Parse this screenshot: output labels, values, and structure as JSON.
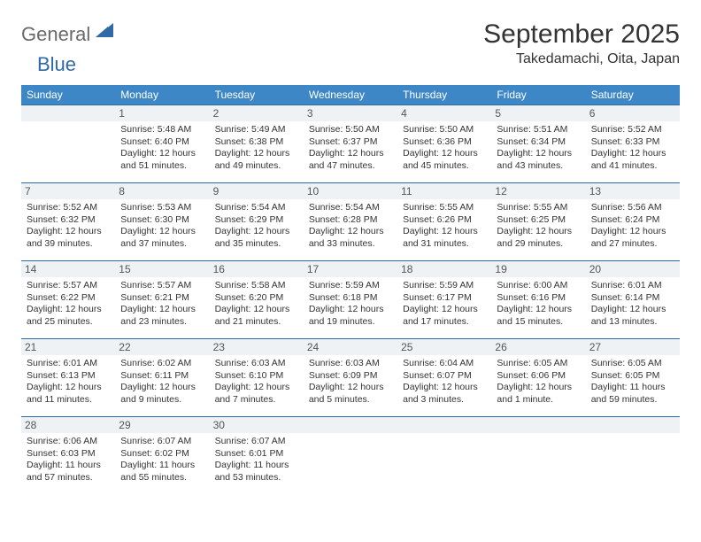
{
  "brand": {
    "part1": "General",
    "part2": "Blue"
  },
  "title": "September 2025",
  "location": "Takedamachi, Oita, Japan",
  "colors": {
    "header_bg": "#3d87c7",
    "header_text": "#ffffff",
    "rule": "#2f6aa6",
    "daynum_bg": "#eef2f5",
    "brand_gray": "#6a6a6a",
    "brand_blue": "#2f6aa6",
    "page_bg": "#ffffff"
  },
  "typography": {
    "title_fontsize": 30,
    "location_fontsize": 16,
    "header_fontsize": 12,
    "body_fontsize": 10.5
  },
  "weekdays": [
    "Sunday",
    "Monday",
    "Tuesday",
    "Wednesday",
    "Thursday",
    "Friday",
    "Saturday"
  ],
  "weeks": [
    [
      {
        "num": "",
        "sunrise": "",
        "sunset": "",
        "daylight": ""
      },
      {
        "num": "1",
        "sunrise": "Sunrise: 5:48 AM",
        "sunset": "Sunset: 6:40 PM",
        "daylight": "Daylight: 12 hours and 51 minutes."
      },
      {
        "num": "2",
        "sunrise": "Sunrise: 5:49 AM",
        "sunset": "Sunset: 6:38 PM",
        "daylight": "Daylight: 12 hours and 49 minutes."
      },
      {
        "num": "3",
        "sunrise": "Sunrise: 5:50 AM",
        "sunset": "Sunset: 6:37 PM",
        "daylight": "Daylight: 12 hours and 47 minutes."
      },
      {
        "num": "4",
        "sunrise": "Sunrise: 5:50 AM",
        "sunset": "Sunset: 6:36 PM",
        "daylight": "Daylight: 12 hours and 45 minutes."
      },
      {
        "num": "5",
        "sunrise": "Sunrise: 5:51 AM",
        "sunset": "Sunset: 6:34 PM",
        "daylight": "Daylight: 12 hours and 43 minutes."
      },
      {
        "num": "6",
        "sunrise": "Sunrise: 5:52 AM",
        "sunset": "Sunset: 6:33 PM",
        "daylight": "Daylight: 12 hours and 41 minutes."
      }
    ],
    [
      {
        "num": "7",
        "sunrise": "Sunrise: 5:52 AM",
        "sunset": "Sunset: 6:32 PM",
        "daylight": "Daylight: 12 hours and 39 minutes."
      },
      {
        "num": "8",
        "sunrise": "Sunrise: 5:53 AM",
        "sunset": "Sunset: 6:30 PM",
        "daylight": "Daylight: 12 hours and 37 minutes."
      },
      {
        "num": "9",
        "sunrise": "Sunrise: 5:54 AM",
        "sunset": "Sunset: 6:29 PM",
        "daylight": "Daylight: 12 hours and 35 minutes."
      },
      {
        "num": "10",
        "sunrise": "Sunrise: 5:54 AM",
        "sunset": "Sunset: 6:28 PM",
        "daylight": "Daylight: 12 hours and 33 minutes."
      },
      {
        "num": "11",
        "sunrise": "Sunrise: 5:55 AM",
        "sunset": "Sunset: 6:26 PM",
        "daylight": "Daylight: 12 hours and 31 minutes."
      },
      {
        "num": "12",
        "sunrise": "Sunrise: 5:55 AM",
        "sunset": "Sunset: 6:25 PM",
        "daylight": "Daylight: 12 hours and 29 minutes."
      },
      {
        "num": "13",
        "sunrise": "Sunrise: 5:56 AM",
        "sunset": "Sunset: 6:24 PM",
        "daylight": "Daylight: 12 hours and 27 minutes."
      }
    ],
    [
      {
        "num": "14",
        "sunrise": "Sunrise: 5:57 AM",
        "sunset": "Sunset: 6:22 PM",
        "daylight": "Daylight: 12 hours and 25 minutes."
      },
      {
        "num": "15",
        "sunrise": "Sunrise: 5:57 AM",
        "sunset": "Sunset: 6:21 PM",
        "daylight": "Daylight: 12 hours and 23 minutes."
      },
      {
        "num": "16",
        "sunrise": "Sunrise: 5:58 AM",
        "sunset": "Sunset: 6:20 PM",
        "daylight": "Daylight: 12 hours and 21 minutes."
      },
      {
        "num": "17",
        "sunrise": "Sunrise: 5:59 AM",
        "sunset": "Sunset: 6:18 PM",
        "daylight": "Daylight: 12 hours and 19 minutes."
      },
      {
        "num": "18",
        "sunrise": "Sunrise: 5:59 AM",
        "sunset": "Sunset: 6:17 PM",
        "daylight": "Daylight: 12 hours and 17 minutes."
      },
      {
        "num": "19",
        "sunrise": "Sunrise: 6:00 AM",
        "sunset": "Sunset: 6:16 PM",
        "daylight": "Daylight: 12 hours and 15 minutes."
      },
      {
        "num": "20",
        "sunrise": "Sunrise: 6:01 AM",
        "sunset": "Sunset: 6:14 PM",
        "daylight": "Daylight: 12 hours and 13 minutes."
      }
    ],
    [
      {
        "num": "21",
        "sunrise": "Sunrise: 6:01 AM",
        "sunset": "Sunset: 6:13 PM",
        "daylight": "Daylight: 12 hours and 11 minutes."
      },
      {
        "num": "22",
        "sunrise": "Sunrise: 6:02 AM",
        "sunset": "Sunset: 6:11 PM",
        "daylight": "Daylight: 12 hours and 9 minutes."
      },
      {
        "num": "23",
        "sunrise": "Sunrise: 6:03 AM",
        "sunset": "Sunset: 6:10 PM",
        "daylight": "Daylight: 12 hours and 7 minutes."
      },
      {
        "num": "24",
        "sunrise": "Sunrise: 6:03 AM",
        "sunset": "Sunset: 6:09 PM",
        "daylight": "Daylight: 12 hours and 5 minutes."
      },
      {
        "num": "25",
        "sunrise": "Sunrise: 6:04 AM",
        "sunset": "Sunset: 6:07 PM",
        "daylight": "Daylight: 12 hours and 3 minutes."
      },
      {
        "num": "26",
        "sunrise": "Sunrise: 6:05 AM",
        "sunset": "Sunset: 6:06 PM",
        "daylight": "Daylight: 12 hours and 1 minute."
      },
      {
        "num": "27",
        "sunrise": "Sunrise: 6:05 AM",
        "sunset": "Sunset: 6:05 PM",
        "daylight": "Daylight: 11 hours and 59 minutes."
      }
    ],
    [
      {
        "num": "28",
        "sunrise": "Sunrise: 6:06 AM",
        "sunset": "Sunset: 6:03 PM",
        "daylight": "Daylight: 11 hours and 57 minutes."
      },
      {
        "num": "29",
        "sunrise": "Sunrise: 6:07 AM",
        "sunset": "Sunset: 6:02 PM",
        "daylight": "Daylight: 11 hours and 55 minutes."
      },
      {
        "num": "30",
        "sunrise": "Sunrise: 6:07 AM",
        "sunset": "Sunset: 6:01 PM",
        "daylight": "Daylight: 11 hours and 53 minutes."
      },
      {
        "num": "",
        "sunrise": "",
        "sunset": "",
        "daylight": ""
      },
      {
        "num": "",
        "sunrise": "",
        "sunset": "",
        "daylight": ""
      },
      {
        "num": "",
        "sunrise": "",
        "sunset": "",
        "daylight": ""
      },
      {
        "num": "",
        "sunrise": "",
        "sunset": "",
        "daylight": ""
      }
    ]
  ]
}
